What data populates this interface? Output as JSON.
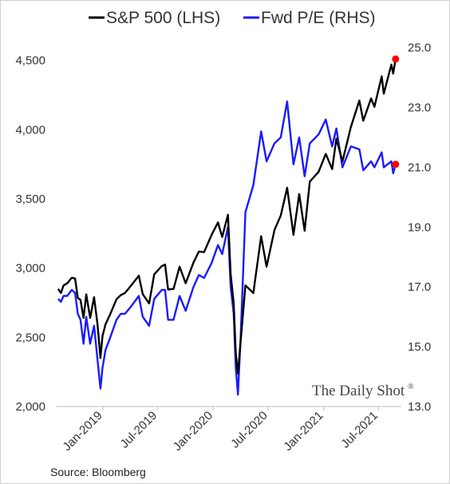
{
  "chart_data": {
    "type": "line",
    "title": "",
    "legend": {
      "placement": "top",
      "entries": [
        {
          "label": "S&P 500 (LHS)",
          "color": "#000000"
        },
        {
          "label": "Fwd P/E (RHS)",
          "color": "#1a1aff"
        }
      ]
    },
    "x_axis": {
      "range": [
        "2018-08-01",
        "2021-09-15"
      ],
      "ticks": [
        "2019-01-01",
        "2019-07-01",
        "2020-01-01",
        "2020-07-01",
        "2021-01-01",
        "2021-07-01"
      ],
      "tick_labels": [
        "Jan-2019",
        "Jul-2019",
        "Jan-2020",
        "Jul-2020",
        "Jan-2021",
        "Jul-2021"
      ]
    },
    "y_left": {
      "label": "S&P 500 (LHS)",
      "range": [
        2000,
        4700
      ],
      "ticks": [
        2000,
        2500,
        3000,
        3500,
        4000,
        4500
      ],
      "tick_labels": [
        "2,000",
        "2,500",
        "3,000",
        "3,500",
        "4,000",
        "4,500"
      ]
    },
    "y_right": {
      "label": "Fwd P/E (RHS)",
      "range": [
        13.0,
        25.5
      ],
      "ticks": [
        13,
        15,
        17,
        19,
        21,
        23,
        25
      ],
      "tick_labels": [
        "13.0",
        "15.0",
        "17.0",
        "19.0",
        "21.0",
        "23.0",
        "25.0"
      ]
    },
    "grid": false,
    "series": [
      {
        "name": "S&P 500 (LHS)",
        "axis": "left",
        "color": "#000000",
        "last_point_marker": "#ff0000",
        "points": [
          [
            "2018-08-06",
            2850
          ],
          [
            "2018-08-15",
            2820
          ],
          [
            "2018-08-24",
            2875
          ],
          [
            "2018-09-05",
            2890
          ],
          [
            "2018-09-20",
            2930
          ],
          [
            "2018-10-01",
            2925
          ],
          [
            "2018-10-10",
            2785
          ],
          [
            "2018-10-19",
            2770
          ],
          [
            "2018-10-29",
            2640
          ],
          [
            "2018-11-07",
            2810
          ],
          [
            "2018-11-20",
            2640
          ],
          [
            "2018-12-03",
            2790
          ],
          [
            "2018-12-14",
            2600
          ],
          [
            "2018-12-24",
            2350
          ],
          [
            "2018-12-31",
            2510
          ],
          [
            "2019-01-10",
            2595
          ],
          [
            "2019-01-25",
            2665
          ],
          [
            "2019-02-15",
            2775
          ],
          [
            "2019-03-01",
            2805
          ],
          [
            "2019-03-15",
            2820
          ],
          [
            "2019-04-01",
            2865
          ],
          [
            "2019-04-30",
            2945
          ],
          [
            "2019-05-13",
            2812
          ],
          [
            "2019-06-03",
            2745
          ],
          [
            "2019-06-20",
            2955
          ],
          [
            "2019-07-15",
            3015
          ],
          [
            "2019-07-26",
            3025
          ],
          [
            "2019-08-05",
            2845
          ],
          [
            "2019-08-23",
            2850
          ],
          [
            "2019-09-12",
            3010
          ],
          [
            "2019-10-02",
            2890
          ],
          [
            "2019-10-28",
            3040
          ],
          [
            "2019-11-15",
            3120
          ],
          [
            "2019-12-02",
            3115
          ],
          [
            "2019-12-27",
            3240
          ],
          [
            "2020-01-17",
            3330
          ],
          [
            "2020-01-31",
            3225
          ],
          [
            "2020-02-19",
            3385
          ],
          [
            "2020-02-28",
            2955
          ],
          [
            "2020-03-09",
            2746
          ],
          [
            "2020-03-16",
            2386
          ],
          [
            "2020-03-23",
            2237
          ],
          [
            "2020-04-01",
            2470
          ],
          [
            "2020-04-17",
            2875
          ],
          [
            "2020-05-13",
            2820
          ],
          [
            "2020-06-08",
            3230
          ],
          [
            "2020-06-26",
            3010
          ],
          [
            "2020-07-22",
            3275
          ],
          [
            "2020-08-12",
            3380
          ],
          [
            "2020-09-02",
            3580
          ],
          [
            "2020-09-23",
            3240
          ],
          [
            "2020-10-12",
            3535
          ],
          [
            "2020-10-30",
            3270
          ],
          [
            "2020-11-16",
            3625
          ],
          [
            "2020-12-15",
            3695
          ],
          [
            "2021-01-08",
            3825
          ],
          [
            "2021-01-29",
            3715
          ],
          [
            "2021-02-12",
            3935
          ],
          [
            "2021-03-04",
            3770
          ],
          [
            "2021-04-01",
            4020
          ],
          [
            "2021-04-29",
            4210
          ],
          [
            "2021-05-12",
            4065
          ],
          [
            "2021-06-07",
            4225
          ],
          [
            "2021-06-18",
            4165
          ],
          [
            "2021-07-12",
            4385
          ],
          [
            "2021-07-19",
            4260
          ],
          [
            "2021-08-13",
            4470
          ],
          [
            "2021-08-19",
            4405
          ],
          [
            "2021-08-27",
            4510
          ]
        ]
      },
      {
        "name": "Fwd P/E (RHS)",
        "axis": "right",
        "color": "#1a1aff",
        "last_point_marker": "#ff0000",
        "points": [
          [
            "2018-08-06",
            16.6
          ],
          [
            "2018-08-15",
            16.5
          ],
          [
            "2018-08-24",
            16.7
          ],
          [
            "2018-09-05",
            16.7
          ],
          [
            "2018-09-20",
            16.9
          ],
          [
            "2018-10-01",
            16.8
          ],
          [
            "2018-10-10",
            16.1
          ],
          [
            "2018-10-19",
            15.9
          ],
          [
            "2018-10-29",
            15.1
          ],
          [
            "2018-11-07",
            16.0
          ],
          [
            "2018-11-20",
            15.1
          ],
          [
            "2018-12-03",
            15.7
          ],
          [
            "2018-12-14",
            14.6
          ],
          [
            "2018-12-24",
            13.6
          ],
          [
            "2018-12-31",
            14.3
          ],
          [
            "2019-01-10",
            14.9
          ],
          [
            "2019-01-25",
            15.3
          ],
          [
            "2019-02-15",
            15.9
          ],
          [
            "2019-03-01",
            16.1
          ],
          [
            "2019-03-15",
            16.1
          ],
          [
            "2019-04-01",
            16.3
          ],
          [
            "2019-04-30",
            16.7
          ],
          [
            "2019-05-13",
            16.0
          ],
          [
            "2019-06-03",
            15.7
          ],
          [
            "2019-06-20",
            16.6
          ],
          [
            "2019-07-15",
            16.9
          ],
          [
            "2019-07-26",
            16.9
          ],
          [
            "2019-08-05",
            15.9
          ],
          [
            "2019-08-23",
            15.9
          ],
          [
            "2019-09-12",
            16.7
          ],
          [
            "2019-10-02",
            16.2
          ],
          [
            "2019-10-28",
            17.0
          ],
          [
            "2019-11-15",
            17.4
          ],
          [
            "2019-12-02",
            17.3
          ],
          [
            "2019-12-27",
            17.8
          ],
          [
            "2020-01-17",
            18.4
          ],
          [
            "2020-01-31",
            18.1
          ],
          [
            "2020-02-19",
            19.0
          ],
          [
            "2020-02-28",
            17.0
          ],
          [
            "2020-03-09",
            16.1
          ],
          [
            "2020-03-16",
            14.3
          ],
          [
            "2020-03-23",
            13.4
          ],
          [
            "2020-04-01",
            15.3
          ],
          [
            "2020-04-17",
            19.5
          ],
          [
            "2020-05-13",
            20.4
          ],
          [
            "2020-06-08",
            22.2
          ],
          [
            "2020-06-26",
            21.2
          ],
          [
            "2020-07-22",
            21.8
          ],
          [
            "2020-08-12",
            22.0
          ],
          [
            "2020-09-02",
            23.2
          ],
          [
            "2020-09-23",
            21.1
          ],
          [
            "2020-10-12",
            22.0
          ],
          [
            "2020-10-30",
            20.7
          ],
          [
            "2020-11-16",
            21.8
          ],
          [
            "2020-12-15",
            22.1
          ],
          [
            "2021-01-08",
            22.6
          ],
          [
            "2021-01-29",
            21.7
          ],
          [
            "2021-02-12",
            22.3
          ],
          [
            "2021-03-04",
            21.0
          ],
          [
            "2021-04-01",
            21.7
          ],
          [
            "2021-04-29",
            21.6
          ],
          [
            "2021-05-12",
            20.9
          ],
          [
            "2021-06-07",
            21.2
          ],
          [
            "2021-06-18",
            21.0
          ],
          [
            "2021-07-12",
            21.5
          ],
          [
            "2021-07-19",
            21.0
          ],
          [
            "2021-08-13",
            21.2
          ],
          [
            "2021-08-19",
            20.8
          ],
          [
            "2021-08-27",
            21.1
          ]
        ]
      }
    ]
  },
  "watermark": {
    "text": "The Daily Shot",
    "registered": "®"
  },
  "source": "Source: Bloomberg"
}
